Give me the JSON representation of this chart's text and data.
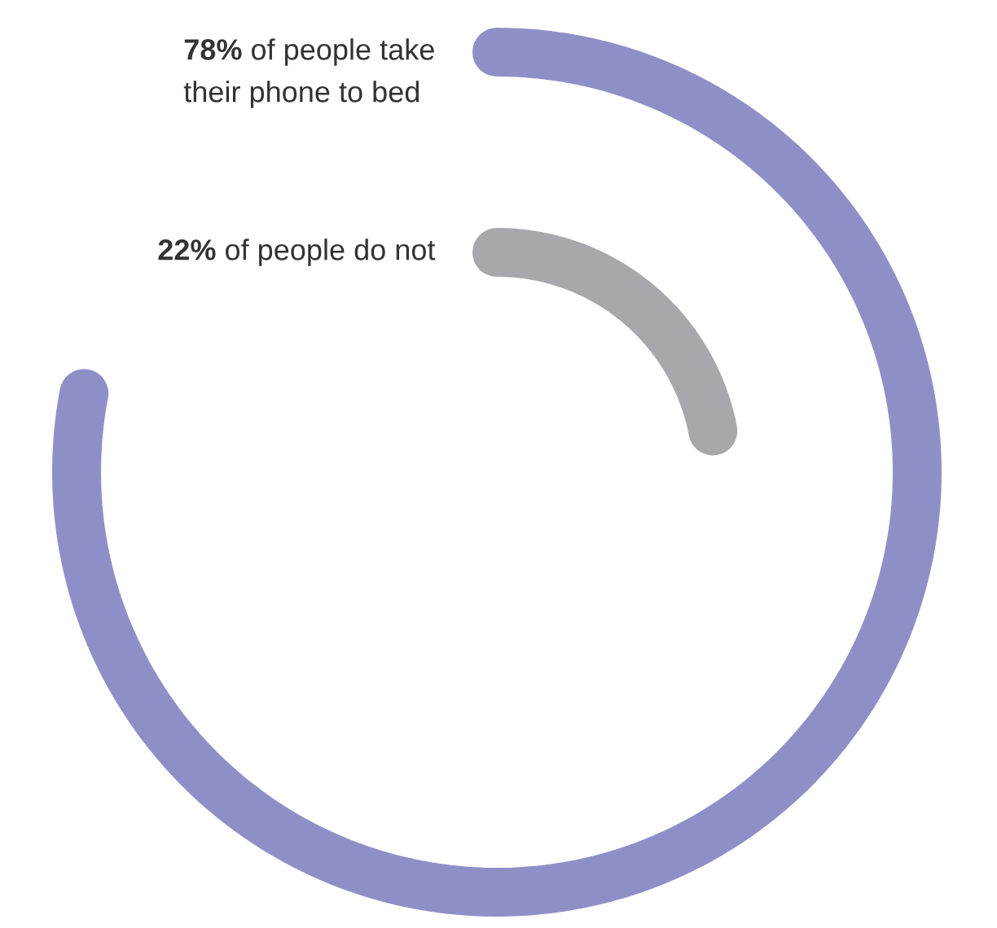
{
  "chart_data": {
    "type": "other",
    "categories": [
      "of people take\ntheir phone to bed",
      "of people do not"
    ],
    "values": [
      78,
      22
    ],
    "value_labels": [
      "78%",
      "22%"
    ],
    "colors": [
      "#8f8fc8",
      "#a8a8ac"
    ]
  }
}
